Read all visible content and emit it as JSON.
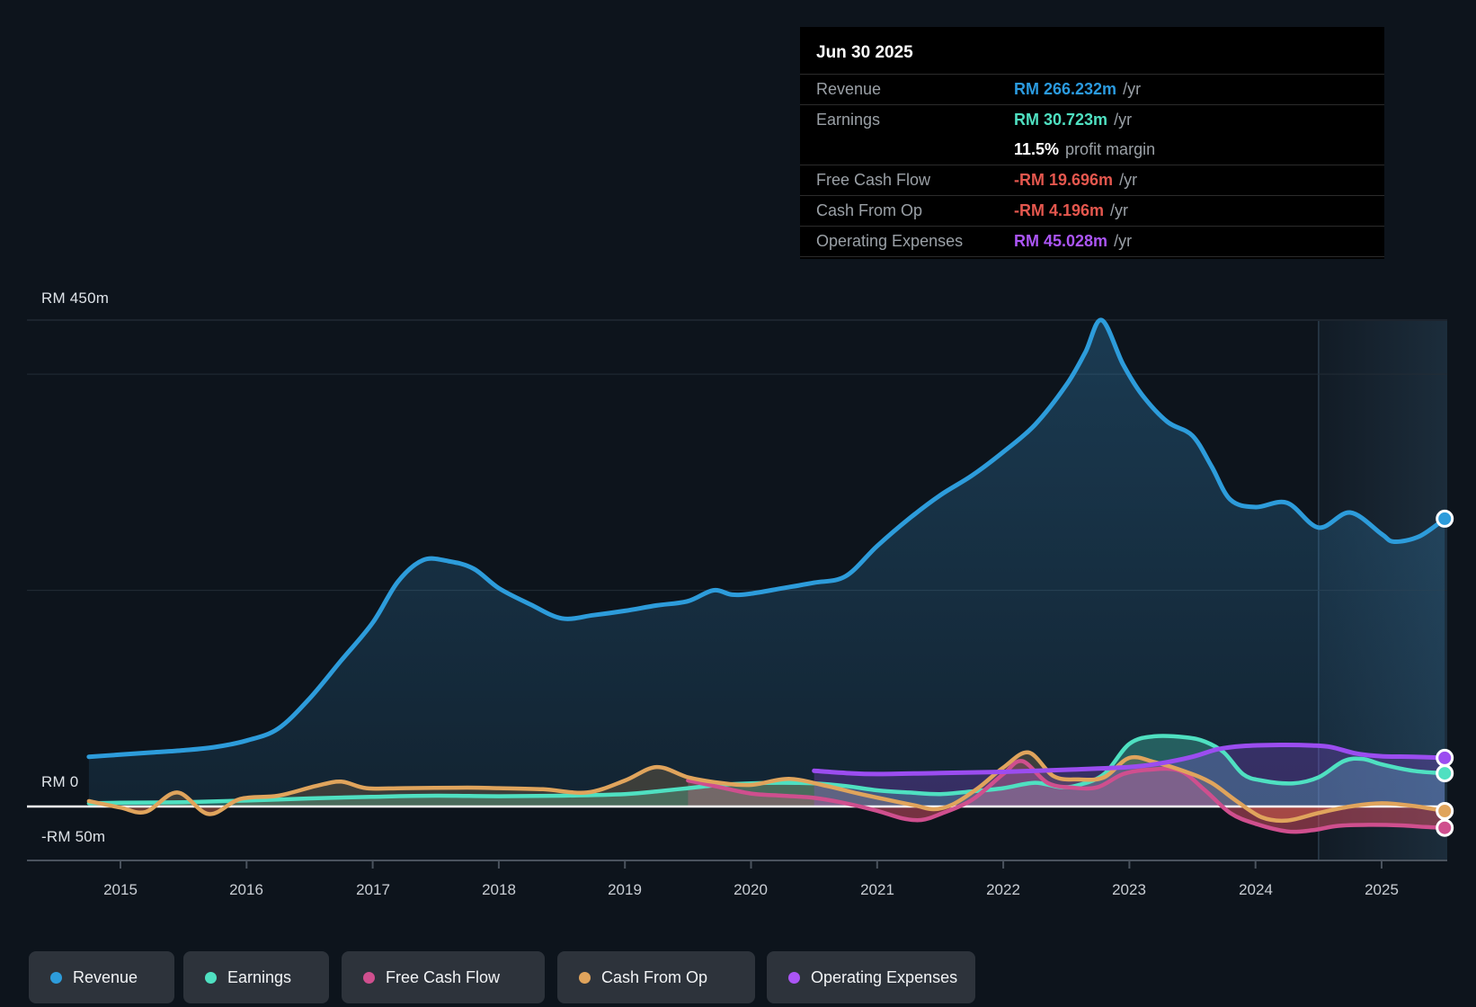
{
  "tooltip": {
    "date": "Jun 30 2025",
    "rows": [
      {
        "label": "Revenue",
        "value": "RM 266.232m",
        "suffix": "/yr",
        "color": "#2b9be0"
      },
      {
        "label": "Earnings",
        "value": "RM 30.723m",
        "suffix": "/yr",
        "color": "#4fe0c1"
      },
      {
        "label": "",
        "value": "11.5%",
        "suffix": "profit margin",
        "color": "#ffffff"
      },
      {
        "label": "Free Cash Flow",
        "value": "-RM 19.696m",
        "suffix": "/yr",
        "color": "#e4574e"
      },
      {
        "label": "Cash From Op",
        "value": "-RM 4.196m",
        "suffix": "/yr",
        "color": "#e4574e"
      },
      {
        "label": "Operating Expenses",
        "value": "RM 45.028m",
        "suffix": "/yr",
        "color": "#ab55f5"
      }
    ]
  },
  "axis": {
    "y_labels": [
      "RM 450m",
      "RM 0",
      "-RM 50m"
    ],
    "x_labels": [
      "2015",
      "2016",
      "2017",
      "2018",
      "2019",
      "2020",
      "2021",
      "2022",
      "2023",
      "2024",
      "2025"
    ]
  },
  "legend": {
    "items": [
      {
        "label": "Revenue",
        "color": "#2d9cdb"
      },
      {
        "label": "Earnings",
        "color": "#4fe0c1"
      },
      {
        "label": "Free Cash Flow",
        "color": "#cf4f8e"
      },
      {
        "label": "Cash From Op",
        "color": "#e0a45c"
      },
      {
        "label": "Operating Expenses",
        "color": "#ab55f5"
      }
    ]
  },
  "chart_data": {
    "type": "area",
    "title": "Past earnings and revenue history to Jun 30 2025",
    "x_unit": "decimal_year",
    "xlim": [
      2014.26,
      2025.55
    ],
    "ylim": [
      -50,
      450
    ],
    "currency": "RM (millions)",
    "y_gridlines_m": [
      450,
      400,
      200,
      0,
      -50
    ],
    "zero_line_m": 0,
    "highlight_band_years": [
      2024.5,
      2025.55
    ],
    "legend_position": "bottom",
    "series": [
      {
        "name": "Revenue",
        "color": "#2d9cdb",
        "points": [
          [
            2014.75,
            46
          ],
          [
            2015,
            48
          ],
          [
            2015.25,
            50
          ],
          [
            2015.5,
            52
          ],
          [
            2015.75,
            55
          ],
          [
            2016,
            61
          ],
          [
            2016.25,
            72
          ],
          [
            2016.5,
            100
          ],
          [
            2016.75,
            135
          ],
          [
            2017,
            170
          ],
          [
            2017.2,
            208
          ],
          [
            2017.4,
            228
          ],
          [
            2017.6,
            227
          ],
          [
            2017.8,
            220
          ],
          [
            2018,
            202
          ],
          [
            2018.25,
            187
          ],
          [
            2018.5,
            174
          ],
          [
            2018.75,
            177
          ],
          [
            2019,
            181
          ],
          [
            2019.25,
            186
          ],
          [
            2019.5,
            190
          ],
          [
            2019.7,
            200
          ],
          [
            2019.85,
            196
          ],
          [
            2020,
            197
          ],
          [
            2020.25,
            202
          ],
          [
            2020.5,
            207
          ],
          [
            2020.75,
            213
          ],
          [
            2021,
            241
          ],
          [
            2021.25,
            266
          ],
          [
            2021.5,
            288
          ],
          [
            2021.75,
            306
          ],
          [
            2022,
            328
          ],
          [
            2022.25,
            353
          ],
          [
            2022.5,
            390
          ],
          [
            2022.65,
            420
          ],
          [
            2022.78,
            450
          ],
          [
            2022.95,
            409
          ],
          [
            2023.1,
            381
          ],
          [
            2023.3,
            356
          ],
          [
            2023.5,
            343
          ],
          [
            2023.65,
            315
          ],
          [
            2023.8,
            284
          ],
          [
            2024,
            277
          ],
          [
            2024.25,
            281
          ],
          [
            2024.5,
            258
          ],
          [
            2024.75,
            272
          ],
          [
            2025,
            252
          ],
          [
            2025.1,
            245
          ],
          [
            2025.3,
            250
          ],
          [
            2025.5,
            266.232
          ]
        ]
      },
      {
        "name": "Earnings",
        "color": "#4fe0c1",
        "points": [
          [
            2014.75,
            3
          ],
          [
            2015,
            3.5
          ],
          [
            2015.5,
            4
          ],
          [
            2016,
            5.5
          ],
          [
            2016.5,
            7.5
          ],
          [
            2017,
            9
          ],
          [
            2017.5,
            10
          ],
          [
            2018,
            9.5
          ],
          [
            2018.5,
            10
          ],
          [
            2019,
            11.5
          ],
          [
            2019.25,
            14
          ],
          [
            2019.5,
            17
          ],
          [
            2019.75,
            20
          ],
          [
            2020,
            21.5
          ],
          [
            2020.25,
            22
          ],
          [
            2020.5,
            21.5
          ],
          [
            2020.75,
            19
          ],
          [
            2021,
            15
          ],
          [
            2021.25,
            13
          ],
          [
            2021.5,
            11.5
          ],
          [
            2021.75,
            14
          ],
          [
            2022,
            17
          ],
          [
            2022.25,
            22
          ],
          [
            2022.45,
            18
          ],
          [
            2022.6,
            20
          ],
          [
            2022.8,
            30
          ],
          [
            2023,
            58
          ],
          [
            2023.2,
            65
          ],
          [
            2023.45,
            64
          ],
          [
            2023.6,
            60
          ],
          [
            2023.75,
            50
          ],
          [
            2023.9,
            30
          ],
          [
            2024.05,
            24
          ],
          [
            2024.3,
            21.5
          ],
          [
            2024.5,
            27
          ],
          [
            2024.7,
            42
          ],
          [
            2024.85,
            44
          ],
          [
            2025,
            39
          ],
          [
            2025.25,
            33
          ],
          [
            2025.5,
            30.723
          ]
        ]
      },
      {
        "name": "Free Cash Flow",
        "color": "#cf4f8e",
        "negative_red": true,
        "points": [
          [
            2019.5,
            24
          ],
          [
            2019.75,
            18
          ],
          [
            2020,
            12
          ],
          [
            2020.25,
            10
          ],
          [
            2020.5,
            8
          ],
          [
            2020.75,
            3
          ],
          [
            2021,
            -4
          ],
          [
            2021.2,
            -11
          ],
          [
            2021.35,
            -12.5
          ],
          [
            2021.5,
            -7
          ],
          [
            2021.75,
            6
          ],
          [
            2022,
            30
          ],
          [
            2022.15,
            42
          ],
          [
            2022.35,
            22
          ],
          [
            2022.55,
            17.5
          ],
          [
            2022.75,
            18
          ],
          [
            2022.95,
            30
          ],
          [
            2023.15,
            34
          ],
          [
            2023.4,
            33
          ],
          [
            2023.6,
            15
          ],
          [
            2023.8,
            -6
          ],
          [
            2024,
            -16
          ],
          [
            2024.25,
            -23
          ],
          [
            2024.45,
            -22
          ],
          [
            2024.65,
            -18
          ],
          [
            2024.9,
            -17
          ],
          [
            2025.15,
            -17.5
          ],
          [
            2025.35,
            -19
          ],
          [
            2025.5,
            -19.696
          ]
        ]
      },
      {
        "name": "Cash From Op",
        "color": "#e0a45c",
        "negative_red": true,
        "points": [
          [
            2014.75,
            5
          ],
          [
            2015,
            -1
          ],
          [
            2015.2,
            -5
          ],
          [
            2015.45,
            13
          ],
          [
            2015.7,
            -7
          ],
          [
            2015.95,
            7
          ],
          [
            2016.25,
            10
          ],
          [
            2016.55,
            19
          ],
          [
            2016.75,
            23
          ],
          [
            2016.95,
            17
          ],
          [
            2017.25,
            17
          ],
          [
            2017.75,
            17.5
          ],
          [
            2018,
            17
          ],
          [
            2018.35,
            16
          ],
          [
            2018.7,
            13
          ],
          [
            2019,
            24
          ],
          [
            2019.25,
            36.5
          ],
          [
            2019.5,
            27
          ],
          [
            2019.75,
            22
          ],
          [
            2020,
            20
          ],
          [
            2020.3,
            25.5
          ],
          [
            2020.6,
            19
          ],
          [
            2020.85,
            12
          ],
          [
            2021.05,
            7
          ],
          [
            2021.3,
            1
          ],
          [
            2021.45,
            -2.5
          ],
          [
            2021.6,
            2
          ],
          [
            2021.8,
            17
          ],
          [
            2022,
            36
          ],
          [
            2022.2,
            50
          ],
          [
            2022.4,
            28
          ],
          [
            2022.6,
            25
          ],
          [
            2022.8,
            27
          ],
          [
            2023,
            45
          ],
          [
            2023.2,
            41
          ],
          [
            2023.45,
            32
          ],
          [
            2023.65,
            22
          ],
          [
            2023.85,
            5
          ],
          [
            2024.05,
            -10
          ],
          [
            2024.25,
            -13
          ],
          [
            2024.5,
            -6
          ],
          [
            2024.75,
            0
          ],
          [
            2025,
            3
          ],
          [
            2025.25,
            0.5
          ],
          [
            2025.5,
            -4.196
          ]
        ]
      },
      {
        "name": "Operating Expenses",
        "color": "#9b4df0",
        "points": [
          [
            2020.5,
            33
          ],
          [
            2020.75,
            31
          ],
          [
            2021,
            30
          ],
          [
            2021.5,
            31
          ],
          [
            2022,
            32
          ],
          [
            2022.5,
            34
          ],
          [
            2023,
            36.5
          ],
          [
            2023.25,
            40
          ],
          [
            2023.5,
            46
          ],
          [
            2023.7,
            53
          ],
          [
            2023.9,
            56
          ],
          [
            2024.2,
            57
          ],
          [
            2024.45,
            56.5
          ],
          [
            2024.6,
            55
          ],
          [
            2024.8,
            49
          ],
          [
            2025,
            46.5
          ],
          [
            2025.25,
            46
          ],
          [
            2025.5,
            45.028
          ]
        ]
      }
    ]
  }
}
